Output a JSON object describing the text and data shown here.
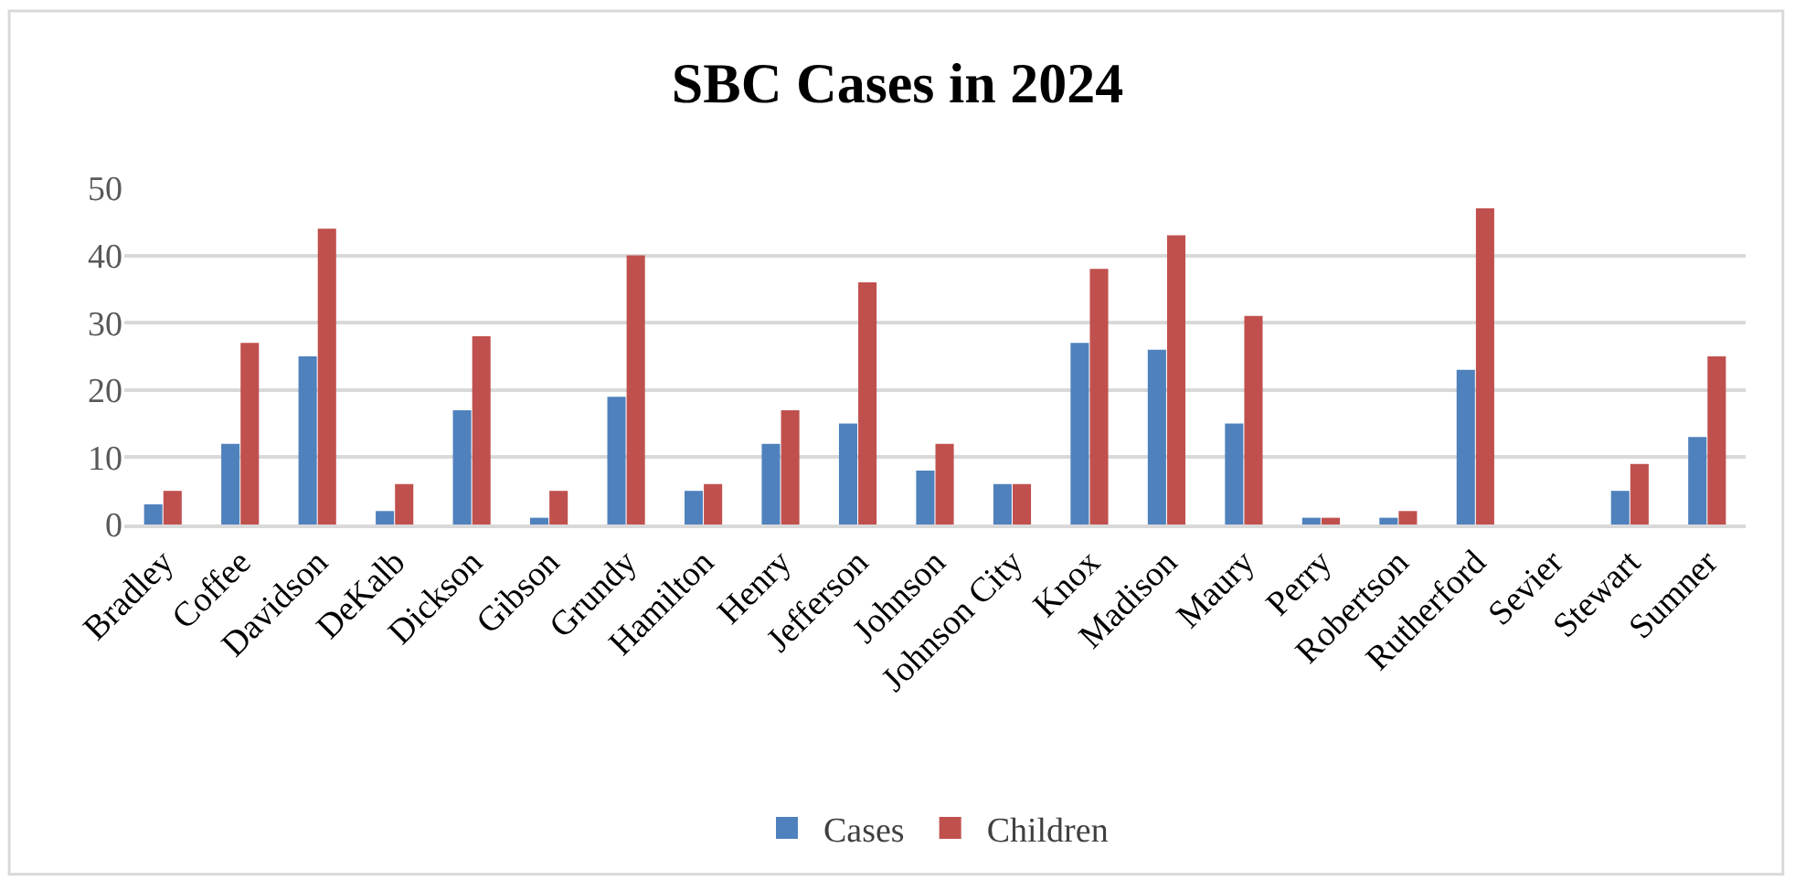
{
  "chart_data": {
    "type": "bar",
    "title": "SBC Cases in 2024",
    "categories": [
      "Bradley",
      "Coffee",
      "Davidson",
      "DeKalb",
      "Dickson",
      "Gibson",
      "Grundy",
      "Hamilton",
      "Henry",
      "Jefferson",
      "Johnson",
      "Johnson City",
      "Knox",
      "Madison",
      "Maury",
      "Perry",
      "Robertson",
      "Rutherford",
      "Sevier",
      "Stewart",
      "Sumner"
    ],
    "series": [
      {
        "name": "Cases",
        "color": "#4f81bd",
        "values": [
          3,
          12,
          25,
          2,
          17,
          1,
          19,
          5,
          12,
          15,
          8,
          6,
          27,
          26,
          15,
          1,
          1,
          23,
          0,
          5,
          13
        ]
      },
      {
        "name": "Children",
        "color": "#c0504d",
        "values": [
          5,
          27,
          44,
          6,
          28,
          5,
          40,
          6,
          17,
          36,
          12,
          6,
          38,
          43,
          31,
          1,
          2,
          47,
          0,
          9,
          25
        ]
      }
    ],
    "ylim": [
      0,
      50
    ],
    "yticks": [
      0,
      10,
      20,
      30,
      40,
      50
    ],
    "grid": "y",
    "legend": "bottom"
  }
}
